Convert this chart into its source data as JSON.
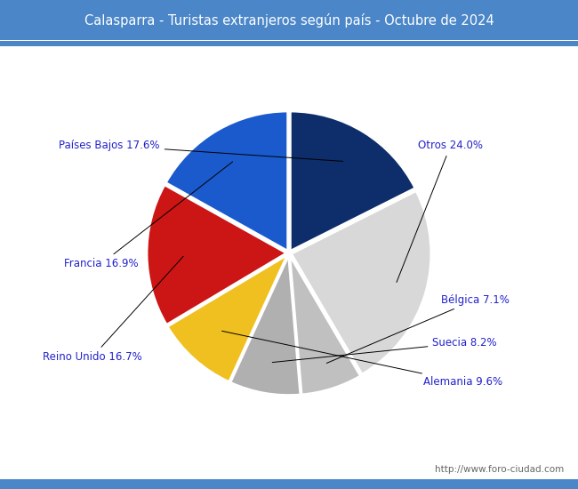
{
  "title": "Calasparra - Turistas extranjeros según país - Octubre de 2024",
  "title_bg_color": "#4a86c8",
  "title_text_color": "white",
  "footer_text": "http://www.foro-ciudad.com",
  "border_color": "#4a86c8",
  "labels": [
    "Países Bajos",
    "Otros",
    "Bélgica",
    "Suecia",
    "Alemania",
    "Reino Unido",
    "Francia"
  ],
  "values": [
    17.6,
    24.0,
    7.1,
    8.2,
    9.6,
    16.7,
    16.9
  ],
  "colors": [
    "#0d2d6b",
    "#d8d8d8",
    "#c0c0c0",
    "#b0b0b0",
    "#f0c020",
    "#cc1515",
    "#1a5acc"
  ],
  "label_color": "#2222cc",
  "background_color": "#ffffff",
  "startangle": 90
}
